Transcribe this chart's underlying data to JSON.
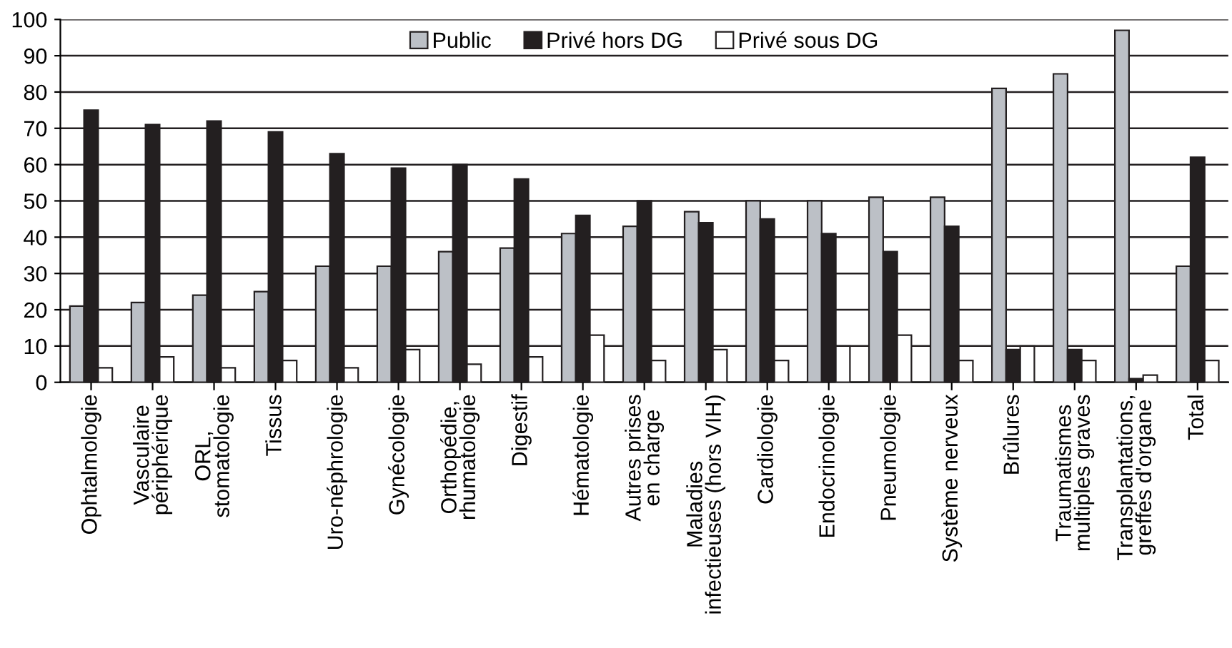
{
  "chart_data": {
    "type": "bar",
    "categories": [
      "Ophtalmologie",
      "Vasculaire\npériphérique",
      "ORL,\nstomatologie",
      "Tissus",
      "Uro-néphrologie",
      "Gynécologie",
      "Orthopédie,\nrhumatologie",
      "Digestif",
      "Hématologie",
      "Autres prises\nen charge",
      "Maladies\ninfectieuses (hors VIH)",
      "Cardiologie",
      "Endocrinologie",
      "Pneumologie",
      "Système nerveux",
      "Brûlures",
      "Traumatismes\nmultiples graves",
      "Transplantations,\ngreffes d'organe",
      "Total"
    ],
    "series": [
      {
        "name": "Public",
        "color": "#bcc0c6",
        "values": [
          21,
          22,
          24,
          25,
          32,
          32,
          36,
          37,
          41,
          43,
          47,
          50,
          50,
          51,
          51,
          81,
          85,
          97,
          32
        ]
      },
      {
        "name": "Privé hors DG",
        "color": "#231f20",
        "values": [
          75,
          71,
          72,
          69,
          63,
          59,
          60,
          56,
          46,
          50,
          44,
          45,
          41,
          36,
          43,
          9,
          9,
          1,
          62
        ]
      },
      {
        "name": "Privé sous DG",
        "color": "#ffffff",
        "values": [
          4,
          7,
          4,
          6,
          4,
          9,
          5,
          7,
          13,
          6,
          9,
          6,
          10,
          13,
          6,
          10,
          6,
          2,
          6
        ]
      }
    ],
    "ylim": [
      0,
      100
    ],
    "yticks": [
      0,
      10,
      20,
      30,
      40,
      50,
      60,
      70,
      80,
      90,
      100
    ],
    "grid": "y",
    "legend": "top"
  }
}
